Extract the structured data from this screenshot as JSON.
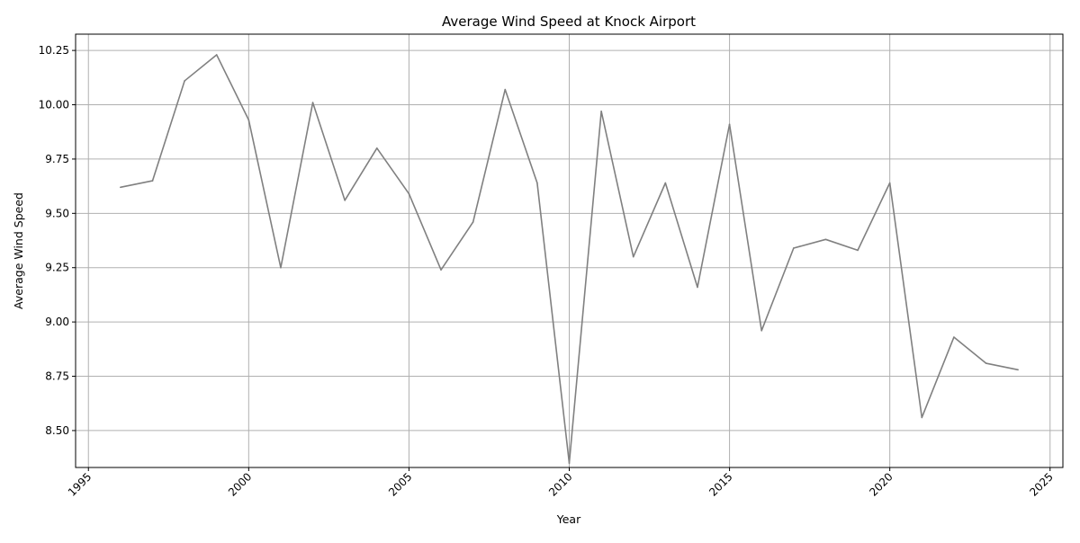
{
  "chart_data": {
    "type": "line",
    "title": "Average Wind Speed at Knock Airport",
    "xlabel": "Year",
    "ylabel": "Average Wind Speed",
    "xlim": [
      1994.6,
      2025.4
    ],
    "ylim": [
      8.33,
      10.325
    ],
    "x_ticks": [
      1995,
      2000,
      2005,
      2010,
      2015,
      2020,
      2025
    ],
    "y_ticks": [
      8.5,
      8.75,
      9.0,
      9.25,
      9.5,
      9.75,
      10.0,
      10.25
    ],
    "y_tick_labels": [
      "8.50",
      "8.75",
      "9.00",
      "9.25",
      "9.50",
      "9.75",
      "10.00",
      "10.25"
    ],
    "grid": true,
    "line_color": "#808080",
    "grid_color": "#b0b0b0",
    "series": [
      {
        "x": [
          1996,
          1997,
          1998,
          1999,
          2000,
          2001,
          2002,
          2003,
          2004,
          2005,
          2006,
          2007,
          2008,
          2009,
          2010,
          2011,
          2012,
          2013,
          2014,
          2015,
          2016,
          2017,
          2018,
          2019,
          2020,
          2021,
          2022,
          2023,
          2024
        ],
        "values": [
          9.62,
          9.65,
          10.11,
          10.23,
          9.93,
          9.25,
          10.01,
          9.56,
          9.8,
          9.59,
          9.24,
          9.46,
          10.07,
          9.64,
          8.35,
          9.97,
          9.3,
          9.64,
          9.16,
          9.91,
          8.96,
          9.34,
          9.38,
          9.33,
          9.64,
          8.56,
          8.93,
          8.81,
          8.78
        ]
      }
    ]
  }
}
